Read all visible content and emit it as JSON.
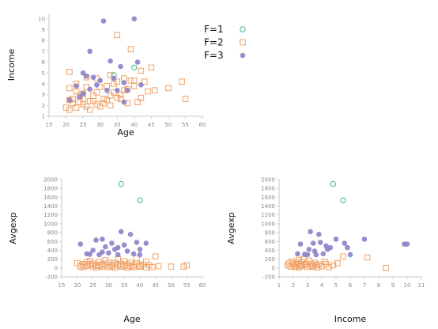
{
  "colors": {
    "F1": "#3cb496",
    "F2": "#f0a064",
    "F3": "#8c82c8"
  },
  "legend": {
    "placement": "top-right",
    "entries": [
      {
        "label": "F=1",
        "marker": "circle-open",
        "color": "#3cb496"
      },
      {
        "label": "F=2",
        "marker": "square-open",
        "color": "#f0a064"
      },
      {
        "label": "F=3",
        "marker": "circle-filled",
        "color": "#8c82c8"
      }
    ]
  },
  "chart_data": [
    {
      "type": "scatter",
      "xlabel": "Age",
      "ylabel": "Income",
      "xlim": [
        15,
        60
      ],
      "ylim": [
        1,
        10.5
      ],
      "xticks": [
        15,
        20,
        25,
        30,
        35,
        40,
        45,
        50,
        55,
        60
      ],
      "yticks": [
        1,
        2,
        3,
        4,
        5,
        6,
        7,
        8,
        9,
        10
      ],
      "grid": false,
      "series": [
        {
          "name": "F=1",
          "marker": "circle-open",
          "color": "#3cb496",
          "points": [
            [
              34,
              4.8
            ],
            [
              40,
              5.5
            ]
          ]
        },
        {
          "name": "F=2",
          "marker": "square-open",
          "color": "#f0a064",
          "points": [
            [
              20,
              1.8
            ],
            [
              21,
              1.6
            ],
            [
              21,
              2.5
            ],
            [
              21,
              5.1
            ],
            [
              21,
              3.6
            ],
            [
              22,
              2.6
            ],
            [
              22,
              2.2
            ],
            [
              23,
              1.8
            ],
            [
              23,
              4.0
            ],
            [
              23,
              3.3
            ],
            [
              24,
              2.9
            ],
            [
              24,
              2.3
            ],
            [
              25,
              2.1
            ],
            [
              25,
              3.1
            ],
            [
              25,
              2.6
            ],
            [
              26,
              1.9
            ],
            [
              26,
              4.6
            ],
            [
              26,
              3.7
            ],
            [
              27,
              2.4
            ],
            [
              27,
              1.6
            ],
            [
              28,
              2.9
            ],
            [
              28,
              2.4
            ],
            [
              29,
              2.1
            ],
            [
              29,
              3.2
            ],
            [
              29,
              4.5
            ],
            [
              30,
              1.9
            ],
            [
              30,
              3.7
            ],
            [
              31,
              2.6
            ],
            [
              31,
              2.2
            ],
            [
              32,
              2.5
            ],
            [
              32,
              3.8
            ],
            [
              33,
              2.0
            ],
            [
              33,
              2.9
            ],
            [
              33,
              4.8
            ],
            [
              34,
              4.0
            ],
            [
              34,
              3.2
            ],
            [
              35,
              8.5
            ],
            [
              35,
              2.7
            ],
            [
              35,
              4.2
            ],
            [
              36,
              3.0
            ],
            [
              36,
              2.6
            ],
            [
              37,
              4.5
            ],
            [
              37,
              3.4
            ],
            [
              38,
              3.5
            ],
            [
              38,
              2.2
            ],
            [
              39,
              4.3
            ],
            [
              39,
              7.2
            ],
            [
              40,
              4.3
            ],
            [
              40,
              3.8
            ],
            [
              41,
              2.3
            ],
            [
              42,
              2.7
            ],
            [
              42,
              5.2
            ],
            [
              43,
              4.2
            ],
            [
              44,
              3.3
            ],
            [
              45,
              5.5
            ],
            [
              46,
              3.4
            ],
            [
              50,
              3.6
            ],
            [
              54,
              4.2
            ],
            [
              55,
              2.6
            ]
          ]
        },
        {
          "name": "F=3",
          "marker": "circle-filled",
          "color": "#8c82c8",
          "points": [
            [
              21,
              2.5
            ],
            [
              23,
              3.8
            ],
            [
              24,
              2.8
            ],
            [
              25,
              3.1
            ],
            [
              25,
              5.0
            ],
            [
              26,
              4.7
            ],
            [
              27,
              3.5
            ],
            [
              27,
              7.0
            ],
            [
              28,
              4.6
            ],
            [
              29,
              3.9
            ],
            [
              30,
              4.3
            ],
            [
              31,
              9.8
            ],
            [
              32,
              3.4
            ],
            [
              33,
              6.1
            ],
            [
              34,
              4.5
            ],
            [
              35,
              3.4
            ],
            [
              36,
              5.6
            ],
            [
              37,
              4.1
            ],
            [
              37,
              2.3
            ],
            [
              38,
              3.4
            ],
            [
              40,
              10.0
            ],
            [
              41,
              6.0
            ],
            [
              42,
              3.9
            ]
          ]
        }
      ]
    },
    {
      "type": "scatter",
      "xlabel": "Age",
      "ylabel": "Avgexp",
      "xlim": [
        15,
        60
      ],
      "ylim": [
        -200,
        2000
      ],
      "xticks": [
        15,
        20,
        25,
        30,
        35,
        40,
        45,
        50,
        55,
        60
      ],
      "yticks": [
        -200,
        0,
        200,
        400,
        600,
        800,
        1000,
        1200,
        1400,
        1600,
        1800,
        2000
      ],
      "grid": false,
      "series": [
        {
          "name": "F=1",
          "marker": "circle-open",
          "color": "#3cb496",
          "points": [
            [
              34,
              1900
            ],
            [
              40,
              1530
            ]
          ]
        },
        {
          "name": "F=2",
          "marker": "square-open",
          "color": "#f0a064",
          "points": [
            [
              20,
              110
            ],
            [
              21,
              30
            ],
            [
              21,
              60
            ],
            [
              22,
              90
            ],
            [
              22,
              20
            ],
            [
              23,
              130
            ],
            [
              23,
              50
            ],
            [
              24,
              80
            ],
            [
              24,
              160
            ],
            [
              25,
              40
            ],
            [
              25,
              100
            ],
            [
              26,
              70
            ],
            [
              26,
              10
            ],
            [
              27,
              50
            ],
            [
              27,
              140
            ],
            [
              28,
              90
            ],
            [
              28,
              30
            ],
            [
              29,
              60
            ],
            [
              29,
              180
            ],
            [
              30,
              20
            ],
            [
              30,
              120
            ],
            [
              31,
              70
            ],
            [
              31,
              40
            ],
            [
              32,
              110
            ],
            [
              32,
              10
            ],
            [
              33,
              60
            ],
            [
              33,
              200
            ],
            [
              34,
              30
            ],
            [
              34,
              90
            ],
            [
              35,
              50
            ],
            [
              35,
              150
            ],
            [
              36,
              10
            ],
            [
              36,
              80
            ],
            [
              37,
              120
            ],
            [
              37,
              40
            ],
            [
              38,
              60
            ],
            [
              38,
              20
            ],
            [
              39,
              100
            ],
            [
              39,
              220
            ],
            [
              40,
              50
            ],
            [
              40,
              30
            ],
            [
              41,
              80
            ],
            [
              42,
              10
            ],
            [
              42,
              140
            ],
            [
              43,
              60
            ],
            [
              44,
              20
            ],
            [
              45,
              260
            ],
            [
              46,
              40
            ],
            [
              50,
              30
            ],
            [
              54,
              30
            ],
            [
              55,
              60
            ]
          ]
        },
        {
          "name": "F=3",
          "marker": "circle-filled",
          "color": "#8c82c8",
          "points": [
            [
              21,
              540
            ],
            [
              23,
              320
            ],
            [
              24,
              310
            ],
            [
              25,
              400
            ],
            [
              26,
              630
            ],
            [
              27,
              300
            ],
            [
              28,
              360
            ],
            [
              28,
              650
            ],
            [
              29,
              480
            ],
            [
              30,
              340
            ],
            [
              31,
              560
            ],
            [
              32,
              420
            ],
            [
              33,
              460
            ],
            [
              33,
              300
            ],
            [
              34,
              820
            ],
            [
              35,
              520
            ],
            [
              36,
              380
            ],
            [
              37,
              760
            ],
            [
              38,
              320
            ],
            [
              39,
              580
            ],
            [
              40,
              300
            ],
            [
              40,
              420
            ],
            [
              42,
              560
            ]
          ]
        }
      ]
    },
    {
      "type": "scatter",
      "xlabel": "Income",
      "ylabel": "Avgexp",
      "xlim": [
        1,
        11
      ],
      "ylim": [
        -200,
        2000
      ],
      "xticks": [
        1,
        2,
        3,
        4,
        5,
        6,
        7,
        8,
        9,
        10,
        11
      ],
      "yticks": [
        -200,
        0,
        200,
        400,
        600,
        800,
        1000,
        1200,
        1400,
        1600,
        1800,
        2000
      ],
      "grid": false,
      "series": [
        {
          "name": "F=1",
          "marker": "circle-open",
          "color": "#3cb496",
          "points": [
            [
              4.8,
              1900
            ],
            [
              5.5,
              1530
            ]
          ]
        },
        {
          "name": "F=2",
          "marker": "square-open",
          "color": "#f0a064",
          "points": [
            [
              1.6,
              60
            ],
            [
              1.7,
              110
            ],
            [
              1.8,
              30
            ],
            [
              1.9,
              150
            ],
            [
              2.0,
              80
            ],
            [
              2.1,
              20
            ],
            [
              2.2,
              120
            ],
            [
              2.2,
              50
            ],
            [
              2.3,
              90
            ],
            [
              2.4,
              180
            ],
            [
              2.4,
              10
            ],
            [
              2.5,
              60
            ],
            [
              2.6,
              130
            ],
            [
              2.6,
              40
            ],
            [
              2.7,
              200
            ],
            [
              2.8,
              70
            ],
            [
              2.9,
              100
            ],
            [
              3.0,
              20
            ],
            [
              3.1,
              160
            ],
            [
              3.2,
              50
            ],
            [
              3.3,
              90
            ],
            [
              3.4,
              30
            ],
            [
              3.5,
              120
            ],
            [
              3.6,
              60
            ],
            [
              3.7,
              10
            ],
            [
              3.8,
              80
            ],
            [
              4.0,
              40
            ],
            [
              4.2,
              140
            ],
            [
              4.3,
              90
            ],
            [
              4.5,
              20
            ],
            [
              4.8,
              60
            ],
            [
              5.1,
              110
            ],
            [
              5.5,
              260
            ],
            [
              7.2,
              240
            ],
            [
              8.5,
              0
            ]
          ]
        },
        {
          "name": "F=3",
          "marker": "circle-filled",
          "color": "#8c82c8",
          "points": [
            [
              2.3,
              320
            ],
            [
              2.5,
              540
            ],
            [
              2.8,
              310
            ],
            [
              3.0,
              300
            ],
            [
              3.1,
              420
            ],
            [
              3.2,
              820
            ],
            [
              3.4,
              560
            ],
            [
              3.5,
              380
            ],
            [
              3.6,
              300
            ],
            [
              3.8,
              760
            ],
            [
              3.9,
              580
            ],
            [
              4.1,
              320
            ],
            [
              4.3,
              500
            ],
            [
              4.4,
              420
            ],
            [
              4.6,
              460
            ],
            [
              5.0,
              650
            ],
            [
              5.6,
              560
            ],
            [
              5.8,
              460
            ],
            [
              6.0,
              300
            ],
            [
              7.0,
              650
            ],
            [
              9.8,
              540
            ],
            [
              10.0,
              540
            ]
          ]
        }
      ]
    }
  ]
}
